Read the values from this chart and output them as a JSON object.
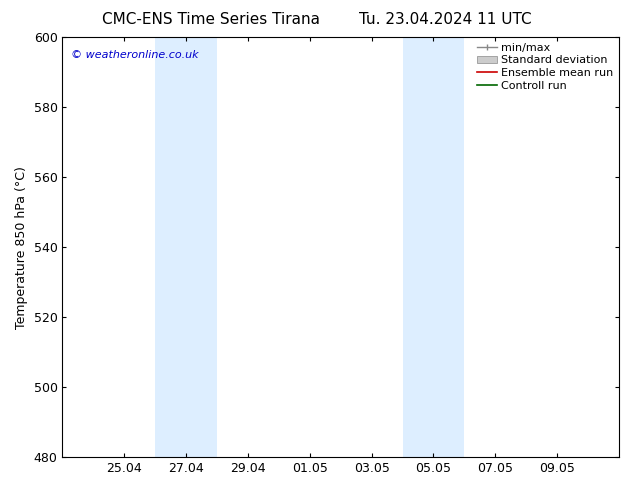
{
  "title": "CMC-ENS Time Series Tirana",
  "title2": "Tu. 23.04.2024 11 UTC",
  "ylabel": "Temperature 850 hPa (°C)",
  "ylim": [
    480,
    600
  ],
  "yticks": [
    480,
    500,
    520,
    540,
    560,
    580,
    600
  ],
  "xtick_labels": [
    "25.04",
    "27.04",
    "29.04",
    "01.05",
    "03.05",
    "05.05",
    "07.05",
    "09.05"
  ],
  "xtick_positions": [
    2,
    4,
    6,
    8,
    10,
    12,
    14,
    16
  ],
  "x_min": 0,
  "x_max": 18,
  "shaded_bands": [
    {
      "x_start": 3.0,
      "x_end": 4.0,
      "color": "#ddeeff"
    },
    {
      "x_start": 4.0,
      "x_end": 5.0,
      "color": "#ddeeff"
    },
    {
      "x_start": 11.0,
      "x_end": 12.0,
      "color": "#ddeeff"
    },
    {
      "x_start": 12.0,
      "x_end": 13.0,
      "color": "#ddeeff"
    }
  ],
  "watermark_text": "© weatheronline.co.uk",
  "watermark_color": "#0000cc",
  "bg_color": "#ffffff",
  "spine_color": "#000000",
  "tick_color": "#000000",
  "font_size": 9,
  "title_font_size": 11,
  "legend_fontsize": 8
}
